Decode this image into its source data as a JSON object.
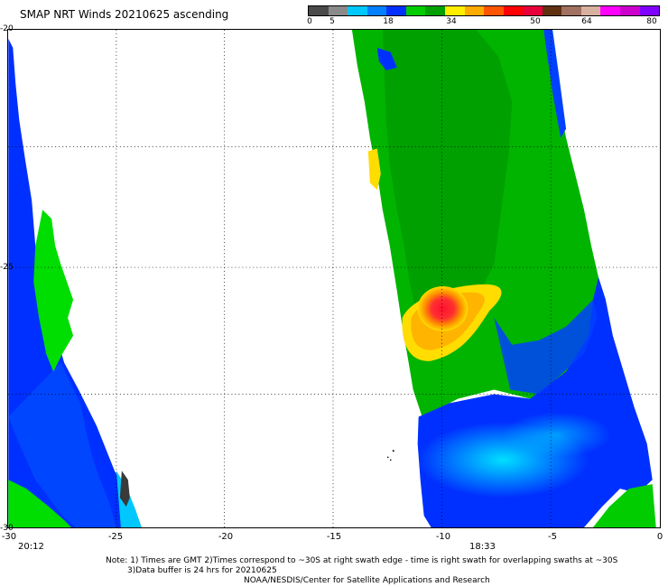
{
  "title": "SMAP NRT Winds 20210625 ascending",
  "colorbar": {
    "ticks": [
      "0",
      "5",
      "18",
      "34",
      "50",
      "64",
      "80"
    ],
    "segments": [
      "#4a4a4a",
      "#8a8a8a",
      "#00c8ff",
      "#0080ff",
      "#0030ff",
      "#00cc00",
      "#00a000",
      "#ffee00",
      "#ffaa00",
      "#ff5500",
      "#ff0000",
      "#e8003a",
      "#603010",
      "#a07060",
      "#d8b0a0",
      "#ff00ff",
      "#cc00cc",
      "#8000ff"
    ]
  },
  "map": {
    "x_ticks": [
      "-30",
      "-25",
      "-20",
      "-15",
      "-10",
      "-5",
      "0"
    ],
    "y_ticks": [
      "-20",
      "-25",
      "-30"
    ],
    "swath_times": [
      "20:12",
      "18:33"
    ]
  },
  "notes": {
    "line1": "Note: 1) Times are GMT 2)Times correspond to ~30S at right swath edge - time is right swath for overlapping swaths at ~30S",
    "line2": "3)Data buffer is 24 hrs for 20210625",
    "line3": "NOAA/NESDIS/Center for Satellite Applications and Research"
  }
}
